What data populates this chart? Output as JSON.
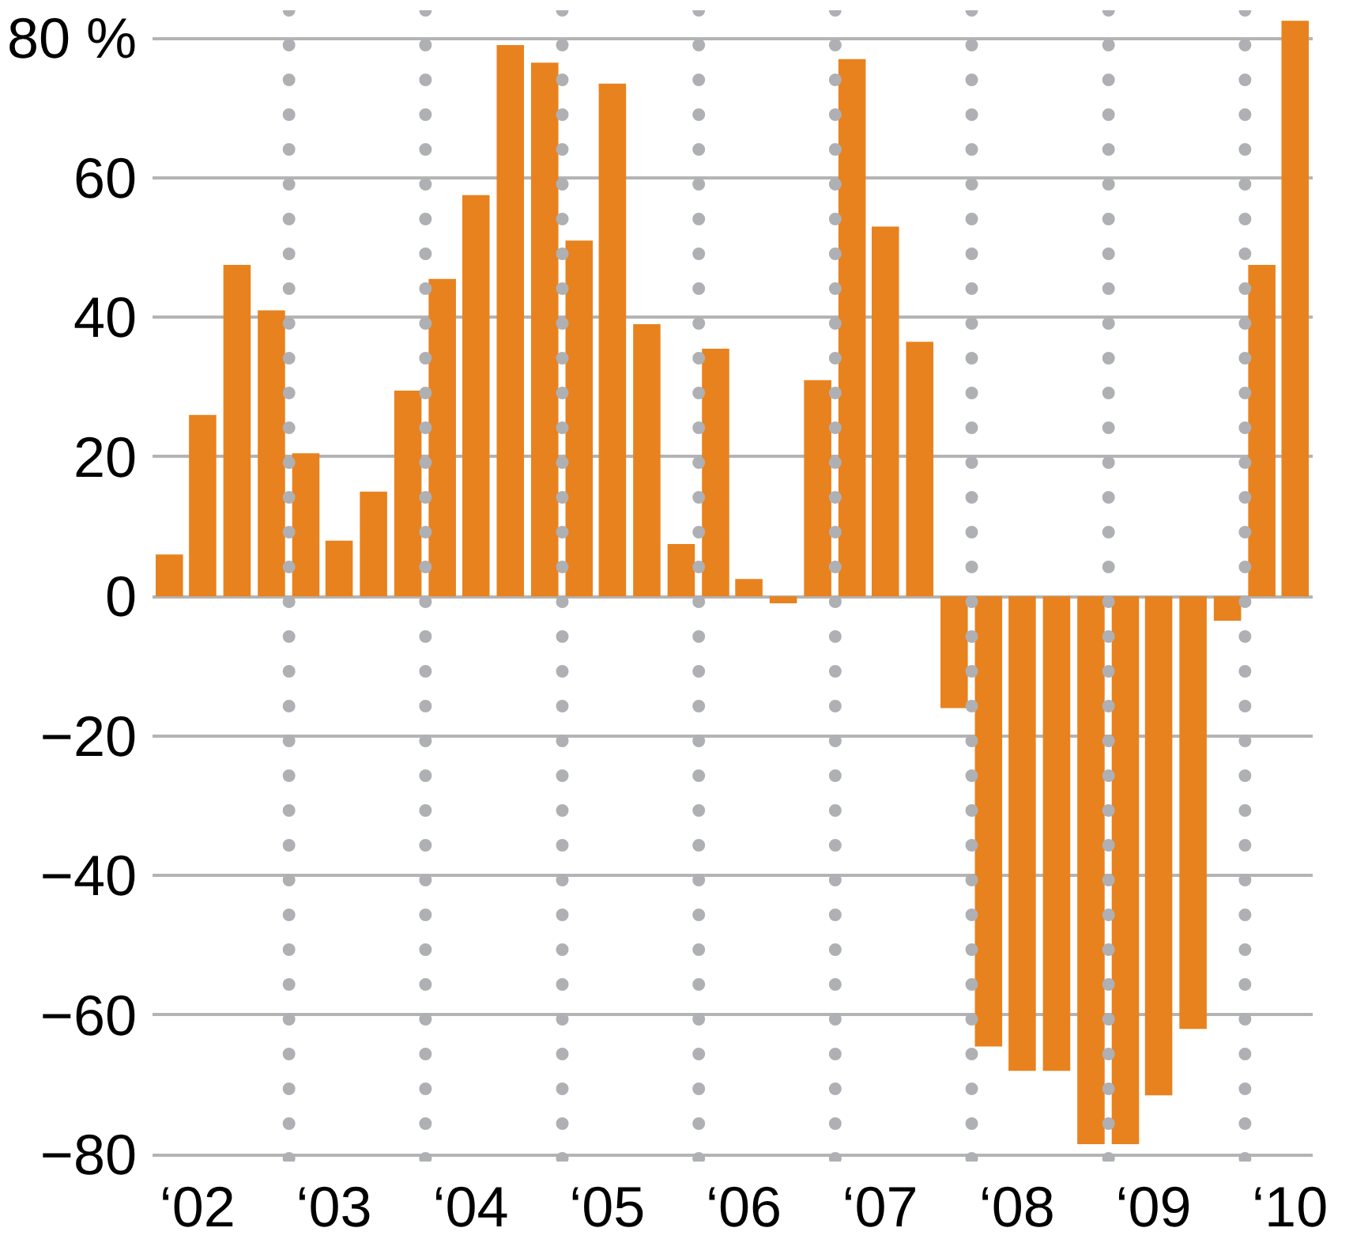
{
  "chart_data": {
    "type": "bar",
    "color": "#e8821e",
    "x": [
      "2002-02-15",
      "2002-05-15",
      "2002-08-15",
      "2002-11-15",
      "2003-02-15",
      "2003-05-15",
      "2003-08-15",
      "2003-11-15",
      "2004-02-15",
      "2004-05-15",
      "2004-08-15",
      "2004-11-15",
      "2005-02-15",
      "2005-05-15",
      "2005-08-15",
      "2005-11-15",
      "2006-02-15",
      "2006-05-15",
      "2006-08-15",
      "2006-11-15",
      "2007-02-15",
      "2007-05-15",
      "2007-08-15",
      "2007-11-15",
      "2008-02-15",
      "2008-05-15",
      "2008-08-15",
      "2008-11-15",
      "2009-02-15",
      "2009-05-15",
      "2009-08-15",
      "2009-11-15",
      "2010-02-15",
      "2010-05-15"
    ],
    "values": [
      6,
      26,
      47.5,
      41,
      20.5,
      8,
      15,
      29.5,
      45.5,
      57.5,
      79,
      76.5,
      51,
      73.5,
      39,
      7.5,
      35.5,
      2.5,
      -1,
      31,
      77,
      53,
      36.5,
      -16,
      -64.5,
      -68,
      -68,
      -78.5,
      -78.5,
      -71.5,
      -62,
      -3.5,
      47.5,
      82.5
    ],
    "xlim": [
      "2002-01-01",
      "2010-07-01"
    ],
    "xticks": [
      {
        "value": "2002-05",
        "label": "‘02"
      },
      {
        "value": "2003-05",
        "label": "‘03"
      },
      {
        "value": "2004-05",
        "label": "‘04"
      },
      {
        "value": "2005-05",
        "label": "‘05"
      },
      {
        "value": "2006-05",
        "label": "‘06"
      },
      {
        "value": "2007-05",
        "label": "‘07"
      },
      {
        "value": "2008-05",
        "label": "‘08"
      },
      {
        "value": "2009-05",
        "label": "‘09"
      },
      {
        "value": "2010-05",
        "label": "‘10"
      }
    ],
    "ylim": [
      -81,
      84
    ],
    "yticks": [
      -80,
      -60,
      -40,
      -20,
      0,
      20,
      40,
      60,
      {
        "value": 80,
        "label": "80 %"
      }
    ],
    "grid": "y",
    "ref_lines": [
      {
        "axis": "x",
        "value": "2003-01-01",
        "color": "#aeb0b4",
        "line_style": "dotted"
      },
      {
        "axis": "x",
        "value": "2004-01-01",
        "color": "#aeb0b4",
        "line_style": "dotted"
      },
      {
        "axis": "x",
        "value": "2005-01-01",
        "color": "#aeb0b4",
        "line_style": "dotted"
      },
      {
        "axis": "x",
        "value": "2006-01-01",
        "color": "#aeb0b4",
        "line_style": "dotted"
      },
      {
        "axis": "x",
        "value": "2007-01-01",
        "color": "#aeb0b4",
        "line_style": "dotted"
      },
      {
        "axis": "x",
        "value": "2008-01-01",
        "color": "#aeb0b4",
        "line_style": "dotted"
      },
      {
        "axis": "x",
        "value": "2009-01-01",
        "color": "#aeb0b4",
        "line_style": "dotted"
      },
      {
        "axis": "x",
        "value": "2010-01-01",
        "color": "#aeb0b4",
        "line_style": "dotted"
      }
    ]
  }
}
